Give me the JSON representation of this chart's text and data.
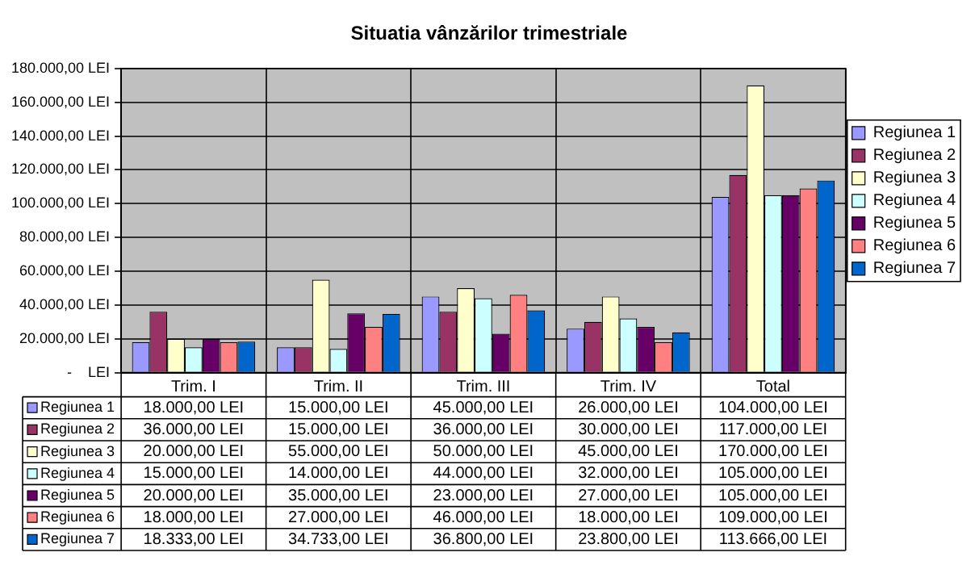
{
  "chart_data": {
    "type": "bar",
    "title": "Situatia vânzărilor trimestriale",
    "categories": [
      "Trim. I",
      "Trim. II",
      "Trim. III",
      "Trim. IV",
      "Total"
    ],
    "series": [
      {
        "name": "Regiunea 1",
        "color": "#9999ff",
        "values": [
          18000,
          15000,
          45000,
          26000,
          104000
        ],
        "value_labels": [
          "18.000,00 LEI",
          "15.000,00 LEI",
          "45.000,00 LEI",
          "26.000,00 LEI",
          "104.000,00 LEI"
        ]
      },
      {
        "name": "Regiunea 2",
        "color": "#993366",
        "values": [
          36000,
          15000,
          36000,
          30000,
          117000
        ],
        "value_labels": [
          "36.000,00 LEI",
          "15.000,00 LEI",
          "36.000,00 LEI",
          "30.000,00 LEI",
          "117.000,00 LEI"
        ]
      },
      {
        "name": "Regiunea 3",
        "color": "#ffffcc",
        "values": [
          20000,
          55000,
          50000,
          45000,
          170000
        ],
        "value_labels": [
          "20.000,00 LEI",
          "55.000,00 LEI",
          "50.000,00 LEI",
          "45.000,00 LEI",
          "170.000,00 LEI"
        ]
      },
      {
        "name": "Regiunea 4",
        "color": "#ccffff",
        "values": [
          15000,
          14000,
          44000,
          32000,
          105000
        ],
        "value_labels": [
          "15.000,00 LEI",
          "14.000,00 LEI",
          "44.000,00 LEI",
          "32.000,00 LEI",
          "105.000,00 LEI"
        ]
      },
      {
        "name": "Regiunea 5",
        "color": "#660066",
        "values": [
          20000,
          35000,
          23000,
          27000,
          105000
        ],
        "value_labels": [
          "20.000,00 LEI",
          "35.000,00 LEI",
          "23.000,00 LEI",
          "27.000,00 LEI",
          "105.000,00 LEI"
        ]
      },
      {
        "name": "Regiunea 6",
        "color": "#ff8080",
        "values": [
          18000,
          27000,
          46000,
          18000,
          109000
        ],
        "value_labels": [
          "18.000,00 LEI",
          "27.000,00 LEI",
          "46.000,00 LEI",
          "18.000,00 LEI",
          "109.000,00 LEI"
        ]
      },
      {
        "name": "Regiunea 7",
        "color": "#0066cc",
        "values": [
          18333,
          34733,
          36800,
          23800,
          113666
        ],
        "value_labels": [
          "18.333,00 LEI",
          "34.733,00 LEI",
          "36.800,00 LEI",
          "23.800,00 LEI",
          "113.666,00 LEI"
        ]
      }
    ],
    "ylim": [
      0,
      180000
    ],
    "yticks": [
      {
        "value": 0,
        "label": "-    LEI"
      },
      {
        "value": 20000,
        "label": "20.000,00 LEI"
      },
      {
        "value": 40000,
        "label": "40.000,00 LEI"
      },
      {
        "value": 60000,
        "label": "60.000,00 LEI"
      },
      {
        "value": 80000,
        "label": "80.000,00 LEI"
      },
      {
        "value": 100000,
        "label": "100.000,00 LEI"
      },
      {
        "value": 120000,
        "label": "120.000,00 LEI"
      },
      {
        "value": 140000,
        "label": "140.000,00 LEI"
      },
      {
        "value": 160000,
        "label": "160.000,00 LEI"
      },
      {
        "value": 180000,
        "label": "180.000,00 LEI"
      }
    ],
    "grid": true,
    "legend": "right"
  }
}
